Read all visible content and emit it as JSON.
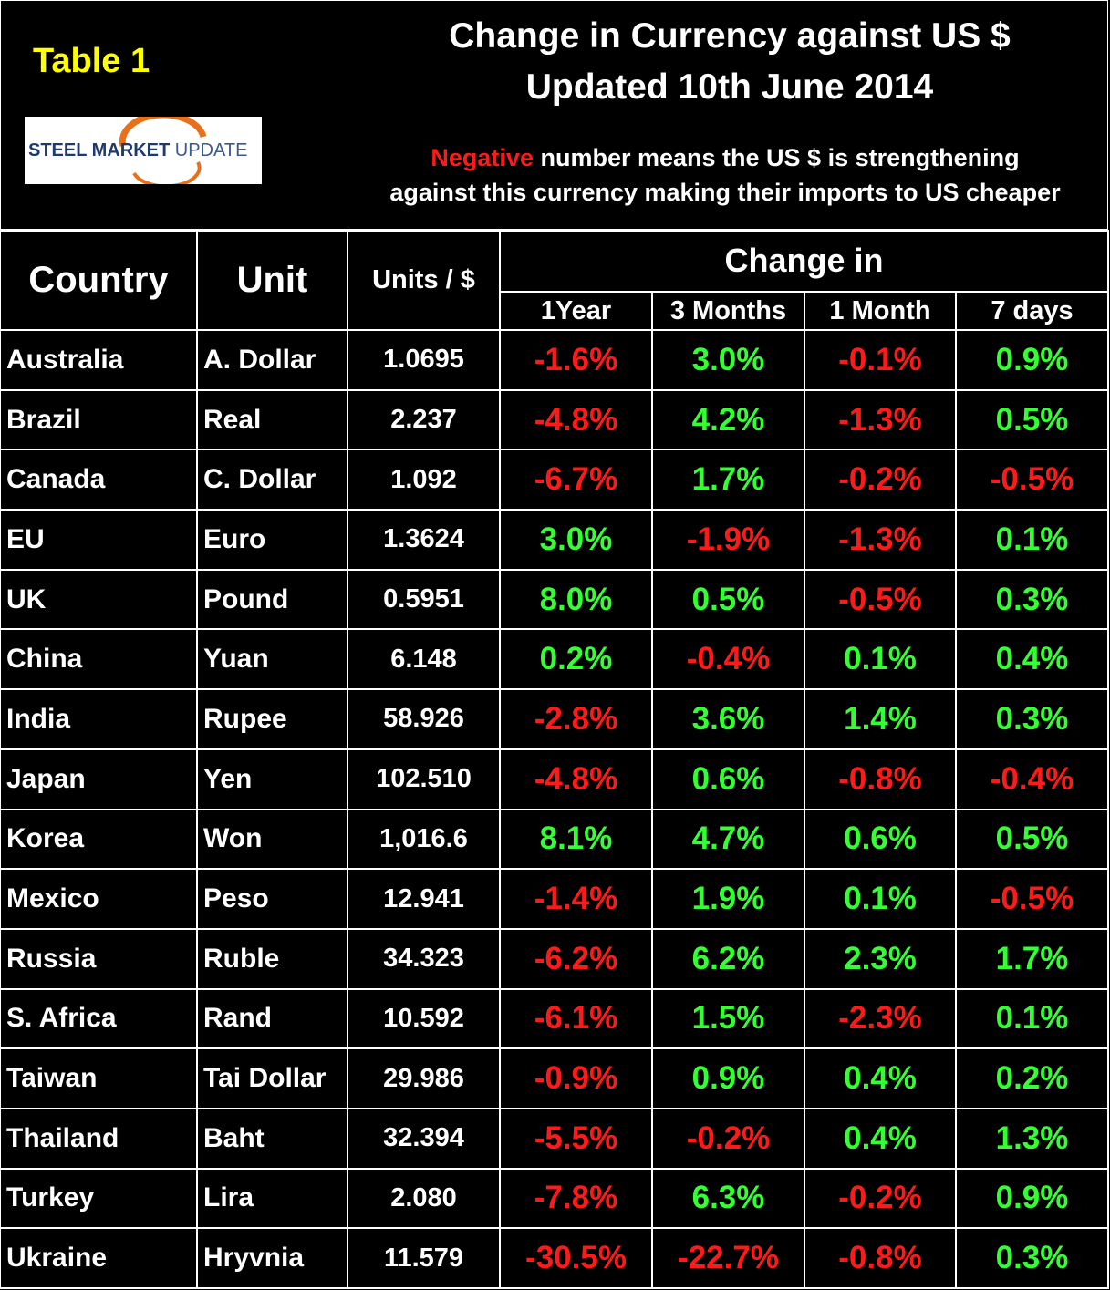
{
  "header": {
    "table_label": "Table 1",
    "logo": {
      "part1": "STEEL MARKET",
      "part2": "UPDATE"
    },
    "title_line1": "Change in Currency against US $",
    "title_line2": "Updated 10th June 2014",
    "note": {
      "highlight": "Negative",
      "line1_rest": "number means the US $ is strengthening",
      "line2": "against this currency making their imports to US cheaper"
    }
  },
  "table": {
    "columns": {
      "country": "Country",
      "unit": "Unit",
      "units_per_dollar": "Units / $",
      "change_group": "Change in",
      "periods": [
        "1Year",
        "3 Months",
        "1 Month",
        "7 days"
      ]
    },
    "rows": [
      [
        "Australia",
        "A. Dollar",
        "1.0695",
        "-1.6%",
        "3.0%",
        "-0.1%",
        "0.9%"
      ],
      [
        "Brazil",
        "Real",
        "2.237",
        "-4.8%",
        "4.2%",
        "-1.3%",
        "0.5%"
      ],
      [
        "Canada",
        "C. Dollar",
        "1.092",
        "-6.7%",
        "1.7%",
        "-0.2%",
        "-0.5%"
      ],
      [
        "EU",
        "Euro",
        "1.3624",
        "3.0%",
        "-1.9%",
        "-1.3%",
        "0.1%"
      ],
      [
        "UK",
        "Pound",
        "0.5951",
        "8.0%",
        "0.5%",
        "-0.5%",
        "0.3%"
      ],
      [
        "China",
        "Yuan",
        "6.148",
        "0.2%",
        "-0.4%",
        "0.1%",
        "0.4%"
      ],
      [
        "India",
        "Rupee",
        "58.926",
        "-2.8%",
        "3.6%",
        "1.4%",
        "0.3%"
      ],
      [
        "Japan",
        "Yen",
        "102.510",
        "-4.8%",
        "0.6%",
        "-0.8%",
        "-0.4%"
      ],
      [
        "Korea",
        "Won",
        "1,016.6",
        "8.1%",
        "4.7%",
        "0.6%",
        "0.5%"
      ],
      [
        "Mexico",
        "Peso",
        "12.941",
        "-1.4%",
        "1.9%",
        "0.1%",
        "-0.5%"
      ],
      [
        "Russia",
        "Ruble",
        "34.323",
        "-6.2%",
        "6.2%",
        "2.3%",
        "1.7%"
      ],
      [
        "S. Africa",
        "Rand",
        "10.592",
        "-6.1%",
        "1.5%",
        "-2.3%",
        "0.1%"
      ],
      [
        "Taiwan",
        "Tai Dollar",
        "29.986",
        "-0.9%",
        "0.9%",
        "0.4%",
        "0.2%"
      ],
      [
        "Thailand",
        "Baht",
        "32.394",
        "-5.5%",
        "-0.2%",
        "0.4%",
        "1.3%"
      ],
      [
        "Turkey",
        "Lira",
        "2.080",
        "-7.8%",
        "6.3%",
        "-0.2%",
        "0.9%"
      ],
      [
        "Ukraine",
        "Hryvnia",
        "11.579",
        "-30.5%",
        "-22.7%",
        "-0.8%",
        "0.3%"
      ]
    ]
  }
}
